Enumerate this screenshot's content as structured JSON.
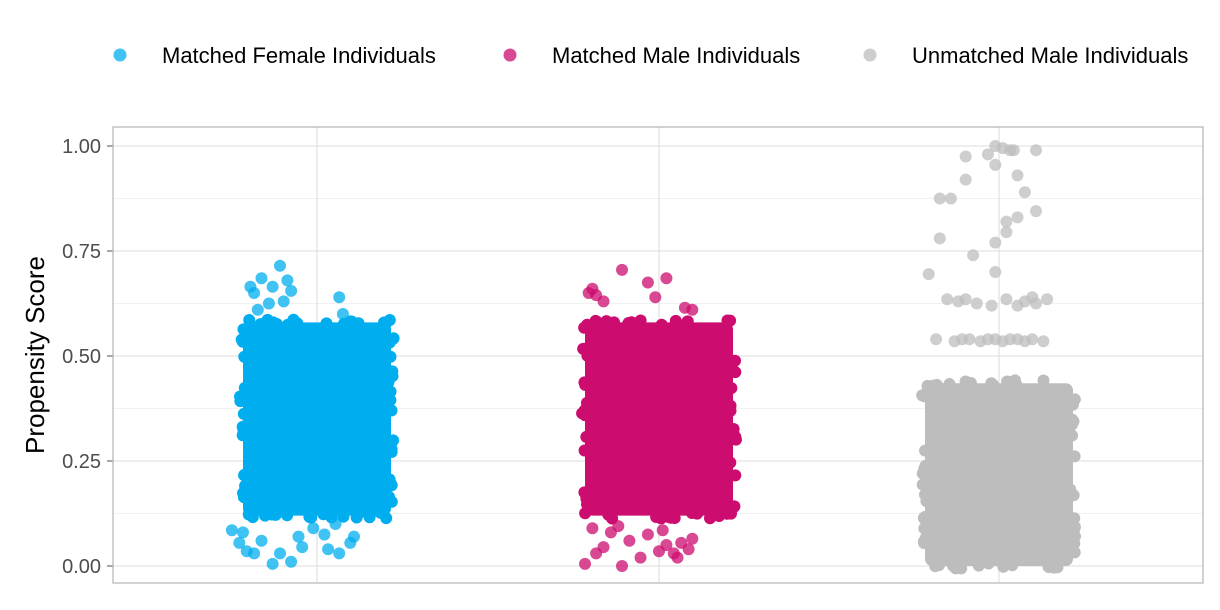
{
  "chart_data": {
    "type": "scatter",
    "subtype": "jitter-strip",
    "title": "",
    "xlabel": "",
    "ylabel": "Propensity Score",
    "ylim": [
      0,
      1
    ],
    "y_ticks": [
      "0.00",
      "0.25",
      "0.50",
      "0.75",
      "1.00"
    ],
    "y_tick_values": [
      0,
      0.25,
      0.5,
      0.75,
      1.0
    ],
    "grid": true,
    "legend_position": "top",
    "series": [
      {
        "name": "Matched Female Individuals",
        "color": "#00AEEF",
        "dense_range": [
          0.12,
          0.58
        ],
        "outliers": [
          [
            -0.3,
            0.685
          ],
          [
            -0.2,
            0.715
          ],
          [
            -0.24,
            0.665
          ],
          [
            -0.14,
            0.655
          ],
          [
            -0.16,
            0.68
          ],
          [
            -0.26,
            0.625
          ],
          [
            -0.32,
            0.61
          ],
          [
            -0.36,
            0.665
          ],
          [
            -0.34,
            0.65
          ],
          [
            -0.18,
            0.63
          ],
          [
            0.12,
            0.64
          ],
          [
            0.14,
            0.6
          ],
          [
            -0.24,
            0.005
          ],
          [
            -0.34,
            0.03
          ],
          [
            -0.38,
            0.035
          ],
          [
            -0.42,
            0.055
          ],
          [
            -0.46,
            0.085
          ],
          [
            0.06,
            0.04
          ],
          [
            0.12,
            0.03
          ],
          [
            0.18,
            0.055
          ],
          [
            0.2,
            0.07
          ],
          [
            -0.1,
            0.07
          ],
          [
            -0.02,
            0.09
          ],
          [
            -0.2,
            0.03
          ],
          [
            -0.3,
            0.06
          ],
          [
            -0.08,
            0.045
          ],
          [
            0.04,
            0.075
          ],
          [
            -0.4,
            0.08
          ],
          [
            0.1,
            0.1
          ],
          [
            -0.14,
            0.01
          ]
        ]
      },
      {
        "name": "Matched Male Individuals",
        "color": "#CC0C6F",
        "dense_range": [
          0.12,
          0.58
        ],
        "outliers": [
          [
            -0.2,
            0.705
          ],
          [
            -0.06,
            0.675
          ],
          [
            0.04,
            0.685
          ],
          [
            -0.36,
            0.66
          ],
          [
            -0.34,
            0.645
          ],
          [
            -0.3,
            0.63
          ],
          [
            -0.02,
            0.64
          ],
          [
            0.14,
            0.615
          ],
          [
            -0.38,
            0.65
          ],
          [
            0.18,
            0.61
          ],
          [
            -0.4,
            0.005
          ],
          [
            -0.34,
            0.03
          ],
          [
            -0.2,
            0.0
          ],
          [
            -0.1,
            0.02
          ],
          [
            0.0,
            0.035
          ],
          [
            0.08,
            0.03
          ],
          [
            0.1,
            0.02
          ],
          [
            0.16,
            0.04
          ],
          [
            -0.3,
            0.045
          ],
          [
            -0.26,
            0.08
          ],
          [
            -0.16,
            0.06
          ],
          [
            -0.06,
            0.075
          ],
          [
            0.04,
            0.05
          ],
          [
            0.12,
            0.055
          ],
          [
            0.18,
            0.065
          ],
          [
            -0.36,
            0.09
          ],
          [
            -0.22,
            0.095
          ],
          [
            0.02,
            0.085
          ]
        ]
      },
      {
        "name": "Unmatched Male Individuals",
        "color": "#BDBDBD",
        "dense_range": [
          0.0,
          0.435
        ],
        "outliers": [
          [
            -0.02,
            1.0
          ],
          [
            0.02,
            0.995
          ],
          [
            0.06,
            0.99
          ],
          [
            0.08,
            0.99
          ],
          [
            -0.06,
            0.98
          ],
          [
            0.2,
            0.99
          ],
          [
            -0.18,
            0.975
          ],
          [
            -0.02,
            0.955
          ],
          [
            0.1,
            0.93
          ],
          [
            -0.18,
            0.92
          ],
          [
            0.14,
            0.89
          ],
          [
            -0.26,
            0.875
          ],
          [
            -0.32,
            0.875
          ],
          [
            0.2,
            0.845
          ],
          [
            0.04,
            0.82
          ],
          [
            0.1,
            0.83
          ],
          [
            0.04,
            0.795
          ],
          [
            -0.02,
            0.77
          ],
          [
            -0.32,
            0.78
          ],
          [
            -0.14,
            0.74
          ],
          [
            -0.02,
            0.7
          ],
          [
            -0.38,
            0.695
          ],
          [
            -0.28,
            0.635
          ],
          [
            -0.22,
            0.63
          ],
          [
            -0.18,
            0.635
          ],
          [
            -0.12,
            0.625
          ],
          [
            -0.04,
            0.62
          ],
          [
            0.04,
            0.635
          ],
          [
            0.1,
            0.62
          ],
          [
            0.14,
            0.63
          ],
          [
            0.18,
            0.64
          ],
          [
            0.2,
            0.625
          ],
          [
            0.26,
            0.635
          ],
          [
            -0.34,
            0.54
          ],
          [
            -0.24,
            0.535
          ],
          [
            -0.2,
            0.54
          ],
          [
            -0.1,
            0.535
          ],
          [
            -0.06,
            0.54
          ],
          [
            0.02,
            0.535
          ],
          [
            0.06,
            0.54
          ],
          [
            0.14,
            0.535
          ],
          [
            0.18,
            0.54
          ],
          [
            0.24,
            0.535
          ],
          [
            -0.02,
            0.54
          ],
          [
            0.1,
            0.54
          ],
          [
            -0.16,
            0.54
          ]
        ]
      }
    ]
  }
}
